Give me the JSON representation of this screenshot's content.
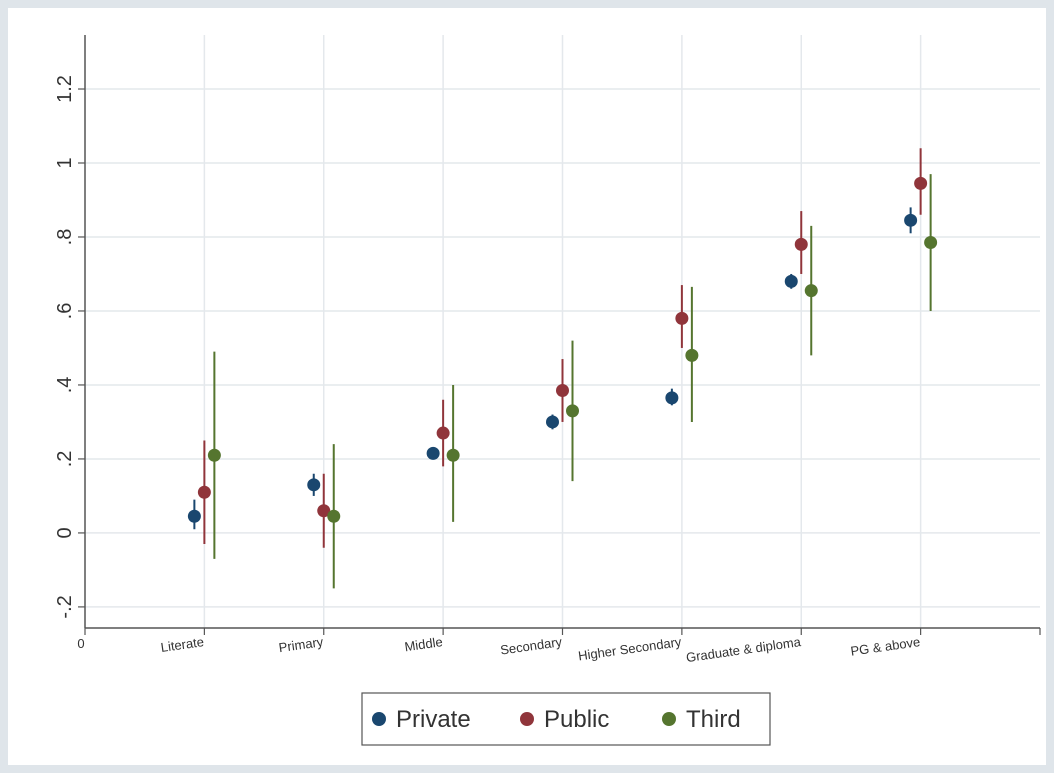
{
  "chart_data": {
    "type": "dot-errorbar",
    "categories": [
      "Literate",
      "Primary",
      "Middle",
      "Secondary",
      "Higher Secondary",
      "Graduate & diploma",
      "PG & above"
    ],
    "xlim": [
      0,
      8
    ],
    "xticks": [
      0
    ],
    "ylim": [
      -0.257,
      1.346
    ],
    "yticks": [
      {
        "value": -0.2,
        "label": "-.2"
      },
      0,
      {
        "value": 0.2,
        "label": ".2"
      },
      {
        "value": 0.4,
        "label": ".4"
      },
      {
        "value": 0.6,
        "label": ".6"
      },
      {
        "value": 0.8,
        "label": ".8"
      },
      1,
      {
        "value": 1.2,
        "label": "1.2"
      }
    ],
    "grid": true,
    "legend": "bottom",
    "series": [
      {
        "name": "Private",
        "color": "#1a476f",
        "values": [
          0.045,
          0.13,
          0.215,
          0.3,
          0.365,
          0.68,
          0.845
        ],
        "lower": [
          0.01,
          0.1,
          0.2,
          0.28,
          0.345,
          0.66,
          0.81
        ],
        "upper": [
          0.09,
          0.16,
          0.23,
          0.32,
          0.39,
          0.7,
          0.88
        ]
      },
      {
        "name": "Public",
        "color": "#90353b",
        "values": [
          0.11,
          0.06,
          0.27,
          0.385,
          0.58,
          0.78,
          0.945
        ],
        "lower": [
          -0.03,
          -0.04,
          0.18,
          0.3,
          0.5,
          0.7,
          0.86
        ],
        "upper": [
          0.25,
          0.16,
          0.36,
          0.47,
          0.67,
          0.87,
          1.04
        ]
      },
      {
        "name": "Third",
        "color": "#55752f",
        "values": [
          0.21,
          0.045,
          0.21,
          0.33,
          0.48,
          0.655,
          0.785
        ],
        "lower": [
          -0.07,
          -0.15,
          0.03,
          0.14,
          0.3,
          0.48,
          0.6
        ],
        "upper": [
          0.49,
          0.24,
          0.4,
          0.52,
          0.665,
          0.83,
          0.97
        ]
      }
    ]
  }
}
